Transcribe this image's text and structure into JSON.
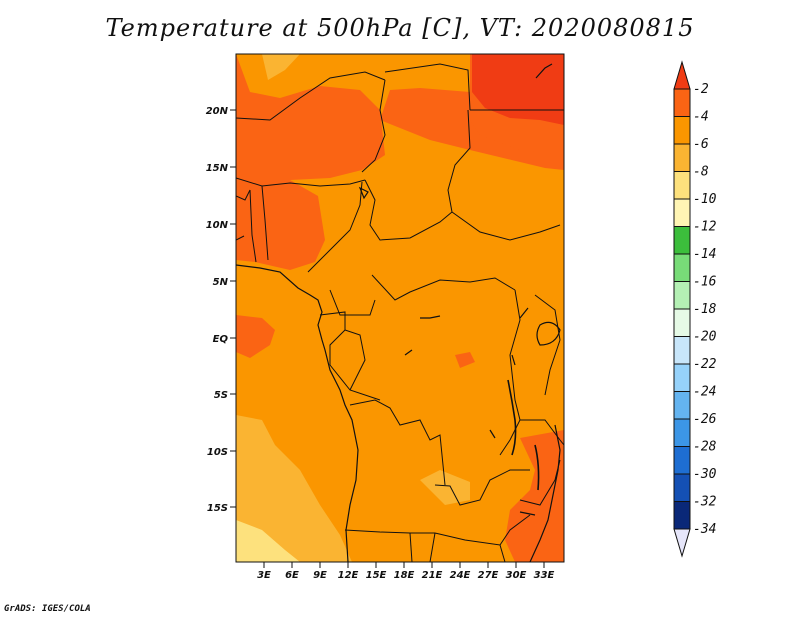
{
  "title": "Temperature at 500hPa [C], VT: 2020080815",
  "credit": "GrADS: IGES/COLA",
  "map": {
    "lat_labels": [
      "20N",
      "15N",
      "10N",
      "5N",
      "EQ",
      "5S",
      "10S",
      "15S"
    ],
    "lon_labels": [
      "3E",
      "6E",
      "9E",
      "12E",
      "15E",
      "18E",
      "21E",
      "24E",
      "27E",
      "30E",
      "33E"
    ]
  },
  "colorbar": {
    "labels": [
      "-2",
      "-4",
      "-6",
      "-8",
      "-10",
      "-12",
      "-14",
      "-16",
      "-18",
      "-20",
      "-22",
      "-24",
      "-26",
      "-28",
      "-30",
      "-32",
      "-34"
    ],
    "colors": {
      "gt_-2": "#f03c14",
      "-2_-4": "#fa6414",
      "-4_-6": "#fa9600",
      "-6_-8": "#fab432",
      "-8_-10": "#fde17d",
      "-10_-12": "#fff5b4",
      "-12_-14": "#3cbe3c",
      "-14_-16": "#78dc78",
      "-16_-18": "#b4f0b4",
      "-18_-20": "#e6fae6",
      "-20_-22": "#c8e6fa",
      "-22_-24": "#96d2fa",
      "-24_-26": "#64b4f0",
      "-26_-28": "#3c96e6",
      "-28_-30": "#1e6ed2",
      "-30_-32": "#1450b4",
      "-32_-34": "#0a2878",
      "lt_-34": "#e6e6fa"
    }
  },
  "fields": {
    "background": "#fa9600",
    "warmest": "#f03c14",
    "warm": "#fa6414",
    "cool": "#fab432",
    "coolest": "#fde17d"
  }
}
